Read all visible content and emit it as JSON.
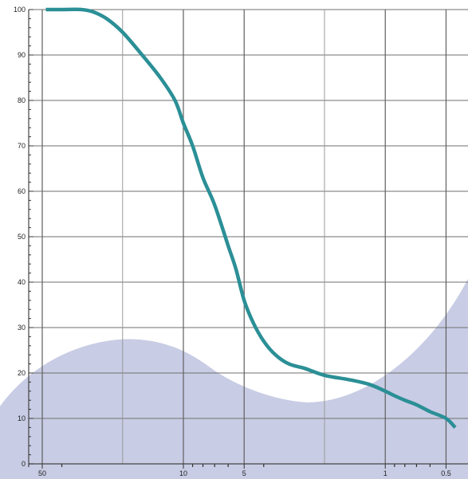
{
  "chart_data": {
    "type": "line",
    "title": "",
    "xlabel": "",
    "ylabel": "",
    "x_scale": "log",
    "x_reversed": true,
    "xlim": [
      60,
      0.4
    ],
    "ylim": [
      0,
      100
    ],
    "grid": true,
    "y_ticks": [
      0,
      10,
      20,
      30,
      40,
      50,
      60,
      70,
      80,
      90,
      100
    ],
    "y_tick_labels": [
      "0",
      "10",
      "20",
      "30",
      "40",
      "50",
      "60",
      "70",
      "80",
      "90",
      "100"
    ],
    "x_major_gridlines": [
      50,
      10,
      5,
      1,
      0.5
    ],
    "x_minor_gridlines": [
      20,
      2
    ],
    "x_tick_labels": [
      {
        "value": 50,
        "label": "50"
      },
      {
        "value": 10,
        "label": "10"
      },
      {
        "value": 5,
        "label": "5"
      },
      {
        "value": 1,
        "label": "1"
      },
      {
        "value": 0.5,
        "label": "0.5"
      }
    ],
    "x_minor_ticks": [
      40,
      9,
      8,
      7,
      6,
      4,
      0.9,
      0.8,
      0.7,
      0.6
    ],
    "series": [
      {
        "color": "#2b8f96",
        "x": [
          48,
          40,
          32,
          28,
          24,
          20,
          16,
          13,
          11,
          10,
          9,
          8,
          7,
          6,
          5.5,
          5,
          4.5,
          4,
          3.5,
          3,
          2.5,
          2,
          1.5,
          1.2,
          1,
          0.9,
          0.8,
          0.7,
          0.6,
          0.5,
          0.45
        ],
        "y": [
          100,
          100,
          100,
          99.5,
          98,
          95,
          90,
          85,
          80,
          75,
          70,
          63,
          57,
          48,
          43,
          36,
          31,
          27,
          24,
          22,
          21,
          19.5,
          18.5,
          17.5,
          16,
          15,
          14,
          13,
          11.5,
          10,
          8
        ]
      }
    ],
    "background_shapes_color": "#c8cce4"
  }
}
